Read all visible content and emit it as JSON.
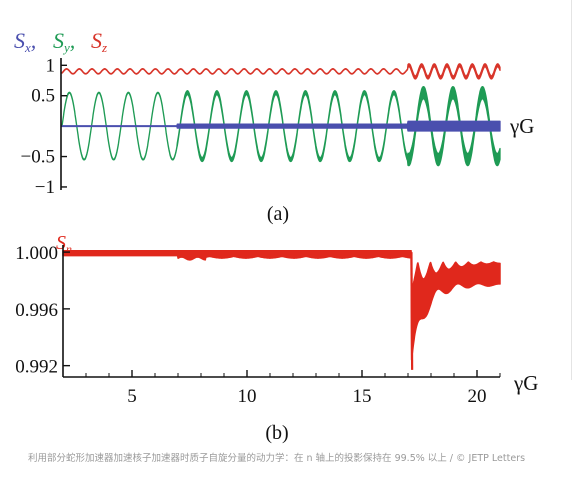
{
  "caption": "利用部分蛇形加速器加速核子加速器时质子自旋分量的动力学：在 n 轴上的投影保持在 99.5% 以上 / © JETP Letters",
  "colors": {
    "sx": "#4a4fae",
    "sy": "#1f9b55",
    "sz": "#d8352a",
    "sn": "#e0281c",
    "axis": "#111111"
  },
  "chart_data": [
    {
      "panel_label": "(a)",
      "type": "line",
      "legend": [
        "Sx",
        "Sy",
        "Sz"
      ],
      "legend_placement": "top-left",
      "xlabel": "γG",
      "yticks": [
        "1",
        "0.5",
        "−0.5",
        "−1"
      ],
      "ytick_values": [
        1,
        0.5,
        -0.5,
        -1
      ],
      "ylim": [
        -1.05,
        1.12
      ],
      "xlim": [
        2,
        21
      ],
      "series": [
        {
          "name": "Sx",
          "mean": 0.0,
          "band_halfwidth_before_17": 0.02,
          "band_halfwidth_after_17": 0.08
        },
        {
          "name": "Sy",
          "amplitude": 0.55,
          "period": 1.28,
          "band_halfwidth_before_17": 0.02,
          "band_halfwidth_after_17": 0.1
        },
        {
          "name": "Sz",
          "mean": 0.9,
          "ripple": 0.04,
          "ripple_after_17": 0.1
        }
      ],
      "grid": false
    },
    {
      "panel_label": "(b)",
      "type": "line",
      "legend": [
        "Sn"
      ],
      "legend_placement": "top-left",
      "xlabel": "γG",
      "xticks": [
        5,
        10,
        15,
        20
      ],
      "xlim": [
        2,
        21
      ],
      "yticks": [
        "1.000",
        "0.996",
        "0.992"
      ],
      "ytick_values": [
        1.0,
        0.996,
        0.992
      ],
      "ylim": [
        0.9912,
        1.0005
      ],
      "min_value": 0.9917,
      "drop_at": 17.15,
      "grid": false
    }
  ]
}
